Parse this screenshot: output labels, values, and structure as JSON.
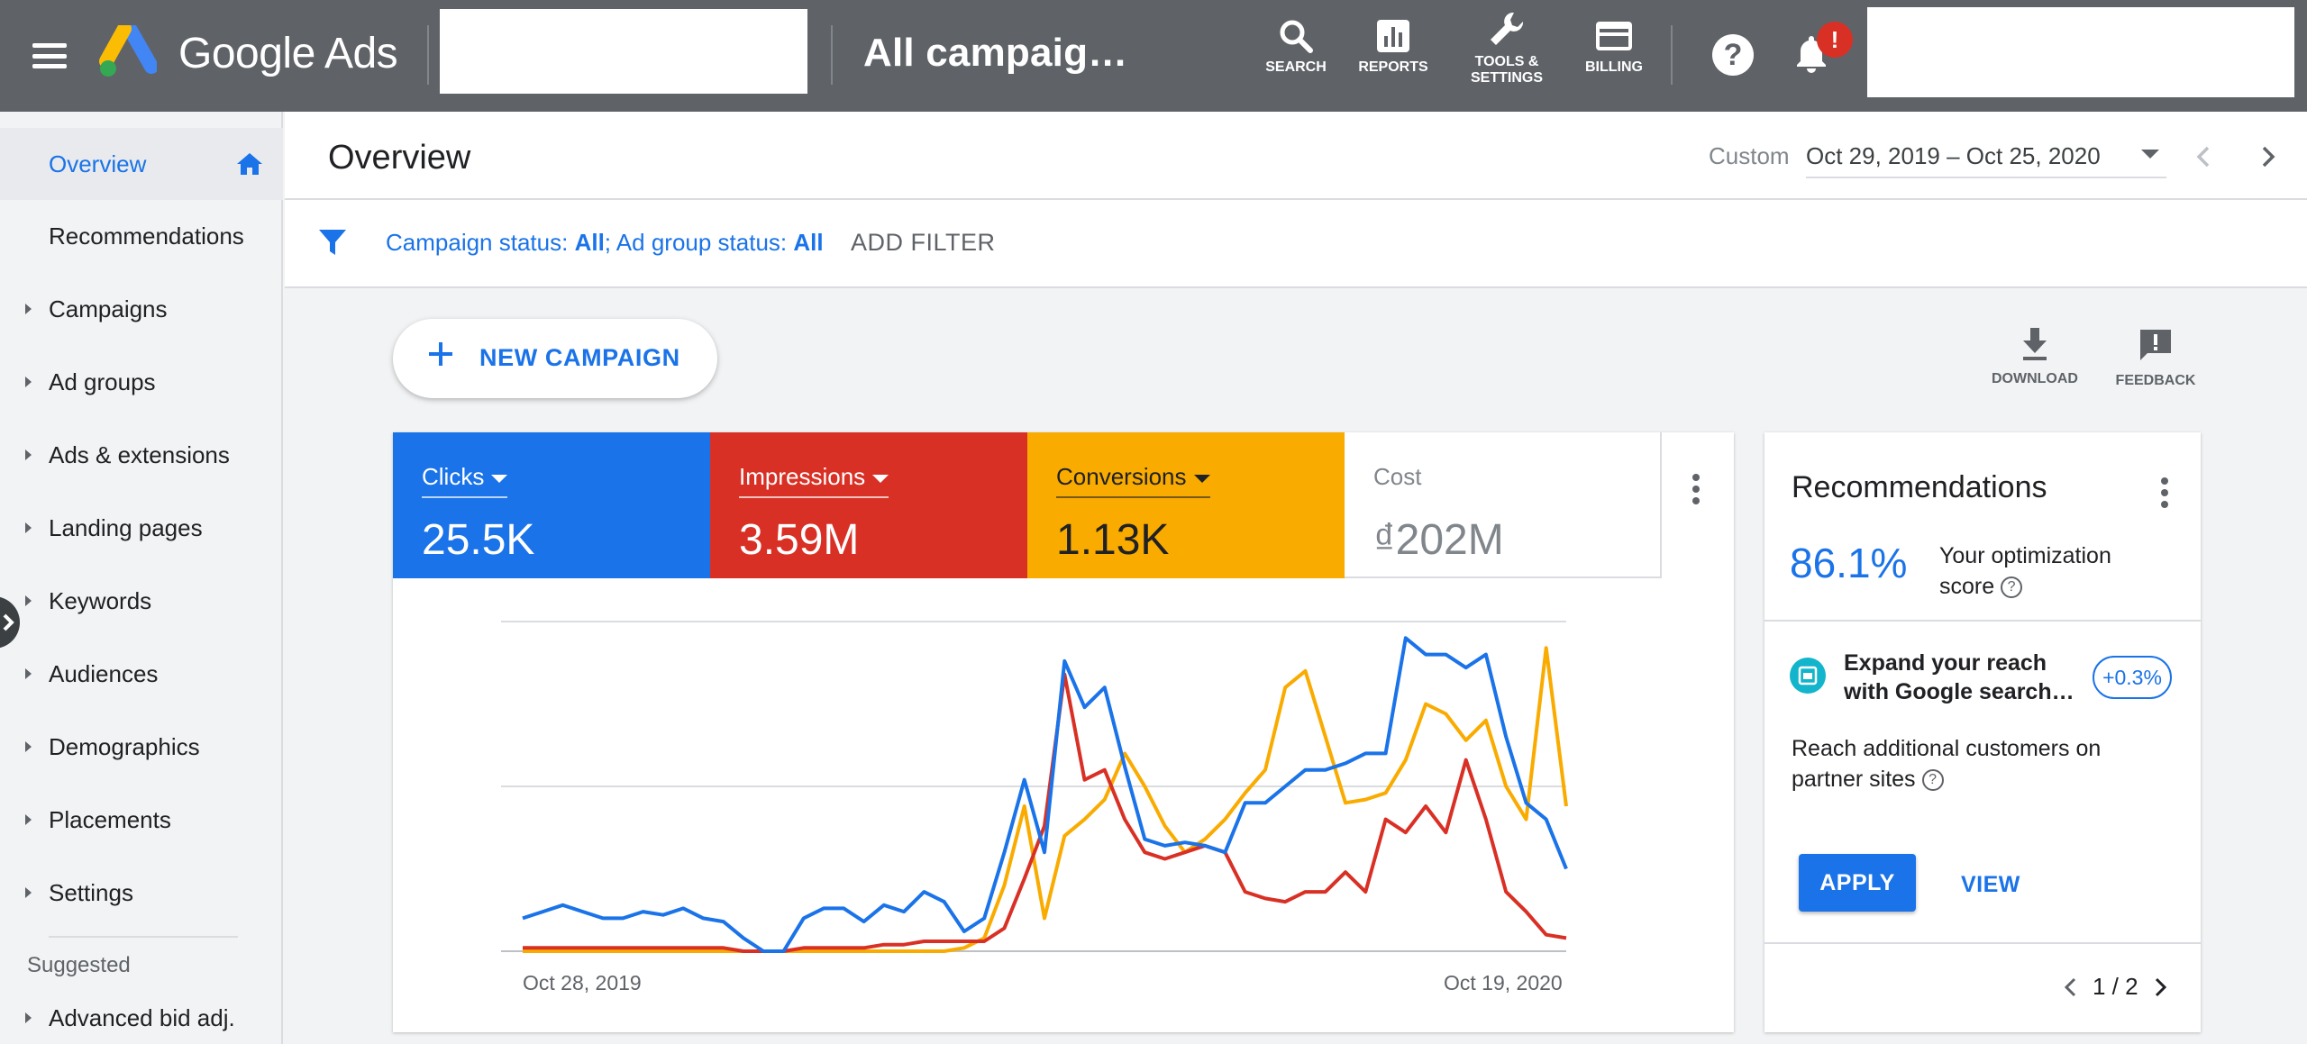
{
  "topbar": {
    "brand": "Google Ads",
    "campaign_title": "All campaig…",
    "tools": [
      {
        "label": "SEARCH",
        "icon": "search-icon"
      },
      {
        "label": "REPORTS",
        "icon": "reports-icon"
      },
      {
        "label": "TOOLS &\nSETTINGS",
        "icon": "wrench-icon"
      },
      {
        "label": "BILLING",
        "icon": "credit-card-icon"
      }
    ],
    "notification_badge": "!"
  },
  "sidebar": {
    "items": [
      {
        "label": "Overview",
        "active": true
      },
      {
        "label": "Recommendations"
      },
      {
        "label": "Campaigns"
      },
      {
        "label": "Ad groups"
      },
      {
        "label": "Ads & extensions"
      },
      {
        "label": "Landing pages"
      },
      {
        "label": "Keywords"
      },
      {
        "label": "Audiences"
      },
      {
        "label": "Demographics"
      },
      {
        "label": "Placements"
      },
      {
        "label": "Settings"
      }
    ],
    "suggested_heading": "Suggested",
    "suggested_items": [
      {
        "label": "Advanced bid adj."
      }
    ]
  },
  "header": {
    "title": "Overview",
    "range_type": "Custom",
    "date_range": "Oct 29, 2019 – Oct 25, 2020"
  },
  "filter": {
    "campaign_status_label": "Campaign status: ",
    "campaign_status_value": "All",
    "ad_group_status_label": "; Ad group status: ",
    "ad_group_status_value": "All",
    "add_filter": "ADD FILTER"
  },
  "actions": {
    "new_campaign": "NEW CAMPAIGN",
    "download": "DOWNLOAD",
    "feedback": "FEEDBACK"
  },
  "metrics": {
    "clicks": {
      "label": "Clicks",
      "value": "25.5K",
      "color": "#1a73e8"
    },
    "impressions": {
      "label": "Impressions",
      "value": "3.59M",
      "color": "#d93025"
    },
    "conversions": {
      "label": "Conversions",
      "value": "1.13K",
      "color": "#f9ab00"
    },
    "cost": {
      "label": "Cost",
      "value": "₫202M"
    }
  },
  "chart_data": {
    "type": "line",
    "x_labels": [
      "Oct 28, 2019",
      "Oct 19, 2020"
    ],
    "grid": true,
    "y_range": [
      0,
      100
    ],
    "series": [
      {
        "name": "Clicks",
        "color": "#1a73e8",
        "values": [
          10,
          12,
          14,
          12,
          10,
          10,
          12,
          11,
          13,
          10,
          9,
          4,
          0,
          0,
          10,
          13,
          13,
          9,
          14,
          12,
          18,
          15,
          6,
          10,
          30,
          52,
          30,
          88,
          74,
          80,
          56,
          34,
          32,
          33,
          32,
          30,
          45,
          45,
          50,
          55,
          55,
          57,
          60,
          60,
          95,
          90,
          90,
          86,
          90,
          65,
          45,
          40,
          25
        ]
      },
      {
        "name": "Impressions",
        "color": "#d93025",
        "values": [
          1,
          1,
          1,
          1,
          1,
          1,
          1,
          1,
          1,
          1,
          1,
          0,
          0,
          0,
          1,
          1,
          1,
          1,
          2,
          2,
          3,
          3,
          3,
          3,
          7,
          22,
          38,
          84,
          52,
          55,
          40,
          30,
          28,
          30,
          32,
          30,
          18,
          16,
          15,
          18,
          18,
          24,
          18,
          40,
          36,
          44,
          36,
          58,
          40,
          18,
          12,
          5,
          4
        ]
      },
      {
        "name": "Conversions",
        "color": "#f9ab00",
        "values": [
          0,
          0,
          0,
          0,
          0,
          0,
          0,
          0,
          0,
          0,
          0,
          0,
          0,
          0,
          0,
          0,
          0,
          0,
          0,
          0,
          0,
          0,
          1,
          4,
          20,
          44,
          10,
          35,
          40,
          46,
          60,
          50,
          38,
          30,
          34,
          40,
          48,
          55,
          80,
          85,
          65,
          45,
          46,
          48,
          58,
          75,
          72,
          64,
          70,
          50,
          40,
          92,
          44
        ]
      }
    ]
  },
  "recommendations": {
    "title": "Recommendations",
    "score": "86.1%",
    "score_label": "Your optimization score",
    "item_title": "Expand your reach with Google search…",
    "uplift": "+0.3%",
    "item_desc": "Reach additional customers on partner sites",
    "apply": "APPLY",
    "view": "VIEW",
    "pager": "1 / 2"
  }
}
